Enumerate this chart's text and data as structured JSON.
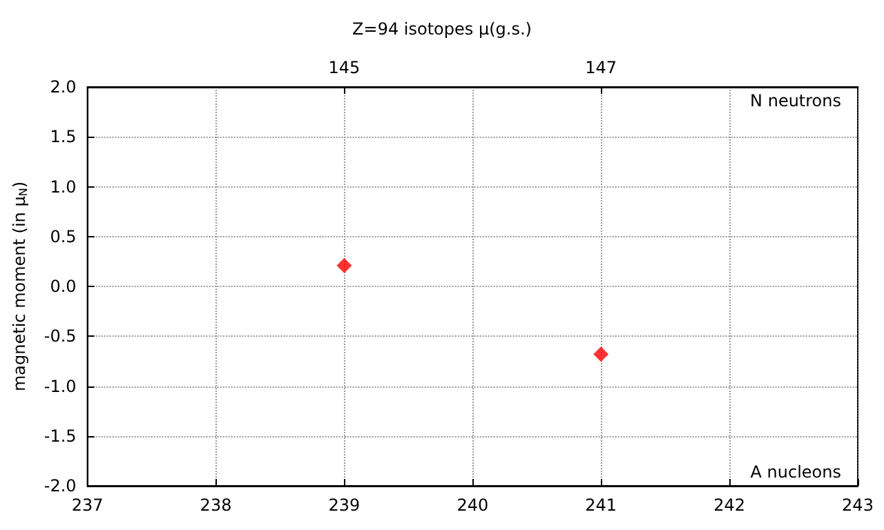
{
  "chart_data": {
    "type": "scatter",
    "title": "Z=94 isotopes μ(g.s.)",
    "xlabel": "A nucleons",
    "x2label": "N neutrons",
    "ylabel": "magnetic moment (in μ$_{N}$)",
    "x": [
      239,
      241
    ],
    "series": [
      {
        "color": "#ff0000",
        "values": [
          0.21,
          -0.68
        ]
      }
    ],
    "marker": "diamond",
    "grid": true,
    "xlim": [
      237,
      243
    ],
    "xticks": [
      237,
      238,
      239,
      240,
      241,
      242,
      243
    ],
    "x2lim": [
      143,
      149
    ],
    "x2ticks": [
      145,
      147
    ],
    "ylim": [
      -2,
      2
    ],
    "yticks": [
      {
        "value": -2,
        "label": "-2.0"
      },
      {
        "value": -1.5,
        "label": "-1.5"
      },
      {
        "value": -1,
        "label": "-1.0"
      },
      {
        "value": -0.5,
        "label": "-0.5"
      },
      {
        "value": 0,
        "label": "0.0"
      },
      {
        "value": 0.5,
        "label": "0.5"
      },
      {
        "value": 1,
        "label": "1.0"
      },
      {
        "value": 1.5,
        "label": "1.5"
      },
      {
        "value": 2,
        "label": "2.0"
      }
    ]
  }
}
